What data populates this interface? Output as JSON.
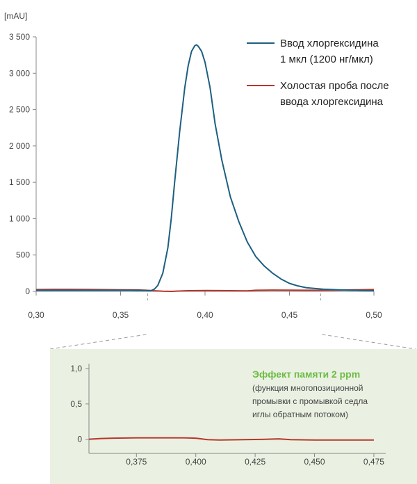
{
  "colors": {
    "injection": "#1d5f80",
    "blank": "#b8362c",
    "inset_bg": "#eaf1e2",
    "accent_green": "#6dbb45",
    "axis": "#888888",
    "connector": "#9a9a9a"
  },
  "chart_data": [
    {
      "type": "line",
      "title": "",
      "ylabel": "[mAU]",
      "xlabel": "",
      "xlim": [
        0.3,
        0.5
      ],
      "ylim": [
        0,
        3500
      ],
      "x_ticks": [
        0.3,
        0.35,
        0.4,
        0.45,
        0.5
      ],
      "x_tick_labels": [
        "0,30",
        "0,35",
        "0,40",
        "0,45",
        "0,50"
      ],
      "y_ticks": [
        0,
        500,
        1000,
        1500,
        2000,
        2500,
        3000,
        3500
      ],
      "y_tick_labels": [
        "0",
        "500",
        "1 000",
        "1 500",
        "2 000",
        "2 500",
        "3 000",
        "3 500"
      ],
      "grid": false,
      "legend_position": "top-right",
      "series": [
        {
          "name_lines": [
            "Ввод хлоргексидина",
            "1 мкл (1200 нг/мкл)"
          ],
          "color_key": "injection",
          "x": [
            0.3,
            0.32,
            0.34,
            0.355,
            0.365,
            0.368,
            0.37,
            0.372,
            0.375,
            0.378,
            0.38,
            0.382,
            0.385,
            0.388,
            0.39,
            0.392,
            0.394,
            0.395,
            0.396,
            0.398,
            0.4,
            0.403,
            0.406,
            0.41,
            0.415,
            0.42,
            0.425,
            0.43,
            0.435,
            0.44,
            0.445,
            0.45,
            0.455,
            0.46,
            0.47,
            0.48,
            0.49,
            0.5
          ],
          "y": [
            15,
            15,
            15,
            15,
            12,
            10,
            30,
            80,
            250,
            600,
            1000,
            1500,
            2200,
            2800,
            3100,
            3300,
            3380,
            3390,
            3370,
            3300,
            3150,
            2800,
            2300,
            1800,
            1300,
            960,
            680,
            480,
            350,
            250,
            170,
            110,
            75,
            50,
            30,
            20,
            15,
            10
          ]
        },
        {
          "name_lines": [
            "Холостая проба после",
            "ввода хлоргексидина"
          ],
          "color_key": "blank",
          "x": [
            0.3,
            0.31,
            0.32,
            0.33,
            0.34,
            0.35,
            0.36,
            0.365,
            0.37,
            0.375,
            0.38,
            0.385,
            0.39,
            0.4,
            0.41,
            0.42,
            0.425,
            0.43,
            0.44,
            0.45,
            0.46,
            0.47,
            0.48,
            0.49,
            0.5
          ],
          "y": [
            25,
            28,
            28,
            26,
            24,
            22,
            20,
            15,
            8,
            2,
            0,
            5,
            10,
            12,
            11,
            8,
            7,
            15,
            18,
            17,
            16,
            16,
            18,
            22,
            25
          ]
        }
      ]
    },
    {
      "type": "line",
      "title": "Эффект памяти 2 ppm",
      "annotation_lines": [
        "(функция многопозиционной",
        "промывки с промывкой седла",
        "иглы обратным потоком)"
      ],
      "xlim": [
        0.355,
        0.48
      ],
      "ylim": [
        -0.2,
        1.05
      ],
      "x_ticks": [
        0.375,
        0.4,
        0.425,
        0.45,
        0.475
      ],
      "x_tick_labels": [
        "0,375",
        "0,400",
        "0,425",
        "0,450",
        "0,475"
      ],
      "y_ticks": [
        0,
        0.5,
        1.0
      ],
      "y_tick_labels": [
        "0",
        "0,5",
        "1,0"
      ],
      "grid": false,
      "series": [
        {
          "color_key": "blank",
          "x": [
            0.355,
            0.36,
            0.365,
            0.375,
            0.385,
            0.395,
            0.4,
            0.405,
            0.41,
            0.42,
            0.43,
            0.435,
            0.44,
            0.45,
            0.46,
            0.47,
            0.475
          ],
          "y": [
            0.0,
            0.01,
            0.015,
            0.02,
            0.02,
            0.02,
            0.015,
            -0.005,
            -0.01,
            -0.005,
            0.0,
            0.005,
            -0.005,
            -0.01,
            -0.01,
            -0.01,
            -0.01
          ]
        }
      ]
    }
  ]
}
